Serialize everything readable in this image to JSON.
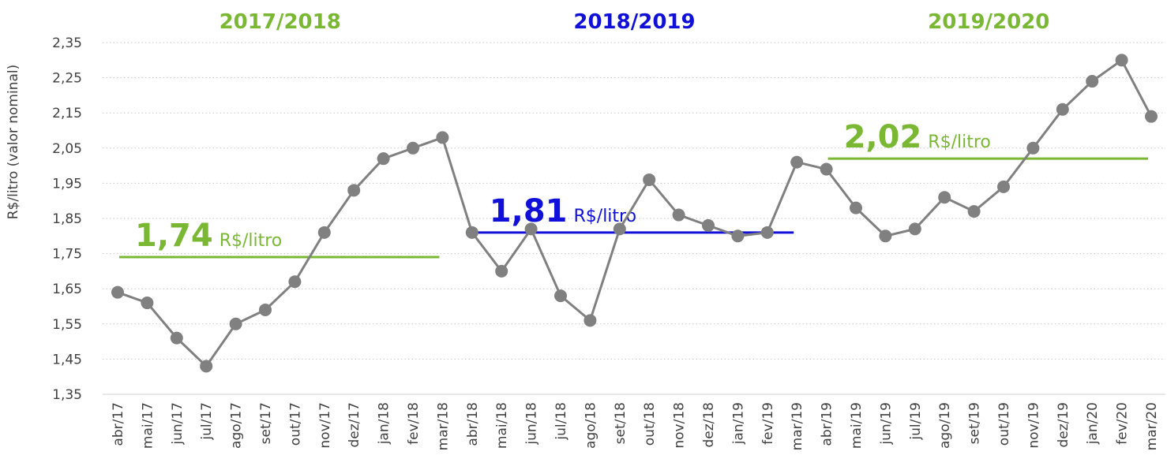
{
  "chart_data": {
    "type": "line",
    "y_label": "R$/litro (valor nominal)",
    "categories": [
      "abr/17",
      "mai/17",
      "jun/17",
      "jul/17",
      "ago/17",
      "set/17",
      "out/17",
      "nov/17",
      "dez/17",
      "jan/18",
      "fev/18",
      "mar/18",
      "abr/18",
      "mai/18",
      "jun/18",
      "jul/18",
      "ago/18",
      "set/18",
      "out/18",
      "nov/18",
      "dez/18",
      "jan/19",
      "fev/19",
      "mar/19",
      "abr/19",
      "mai/19",
      "jun/19",
      "jul/19",
      "ago/19",
      "set/19",
      "out/19",
      "nov/19",
      "dez/19",
      "jan/20",
      "fev/20",
      "mar/20"
    ],
    "series": [
      {
        "color": "#808080",
        "values": [
          1.64,
          1.61,
          1.51,
          1.43,
          1.55,
          1.59,
          1.67,
          1.81,
          1.93,
          2.02,
          2.05,
          2.08,
          1.81,
          1.7,
          1.82,
          1.63,
          1.56,
          1.82,
          1.96,
          1.86,
          1.83,
          1.8,
          1.81,
          2.01,
          1.99,
          1.88,
          1.8,
          1.82,
          1.91,
          1.87,
          1.94,
          2.05,
          2.16,
          2.24,
          2.3,
          2.14
        ]
      }
    ],
    "ylim": [
      1.35,
      2.35
    ],
    "yticks": [
      {
        "value": 1.35,
        "label": "1,35"
      },
      {
        "value": 1.45,
        "label": "1,45"
      },
      {
        "value": 1.55,
        "label": "1,55"
      },
      {
        "value": 1.65,
        "label": "1,65"
      },
      {
        "value": 1.75,
        "label": "1,75"
      },
      {
        "value": 1.85,
        "label": "1,85"
      },
      {
        "value": 1.95,
        "label": "1,95"
      },
      {
        "value": 2.05,
        "label": "2,05"
      },
      {
        "value": 2.15,
        "label": "2,15"
      },
      {
        "value": 2.25,
        "label": "2,25"
      },
      {
        "value": 2.35,
        "label": "2,35"
      }
    ],
    "grid": true,
    "seasons": [
      {
        "label": "2017/2018",
        "average": 1.74,
        "average_label": "1,74",
        "unit": "R$/litro",
        "color": "#7ab834"
      },
      {
        "label": "2018/2019",
        "average": 1.81,
        "average_label": "1,81",
        "unit": "R$/litro",
        "color": "#1010d8"
      },
      {
        "label": "2019/2020",
        "average": 2.02,
        "average_label": "2,02",
        "unit": "R$/litro",
        "color": "#7ab834"
      }
    ]
  }
}
